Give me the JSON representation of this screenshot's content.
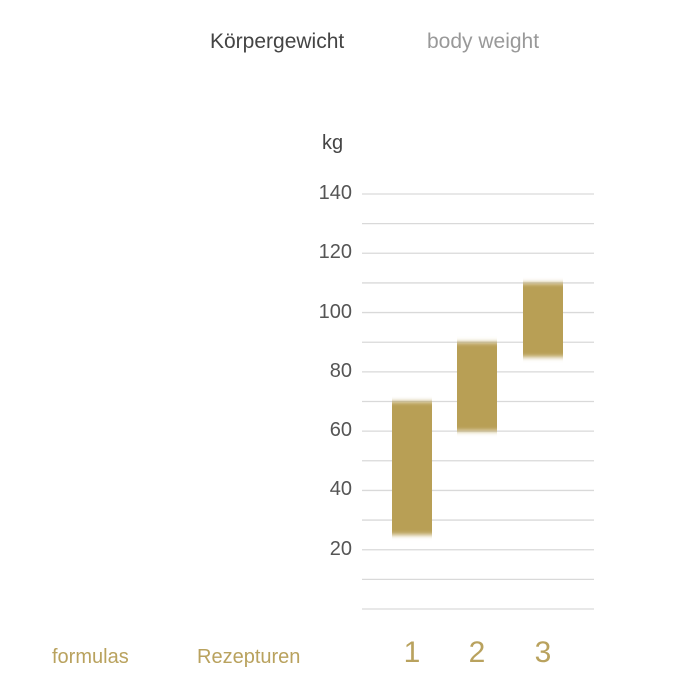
{
  "header": {
    "title_de": "Körpergewicht",
    "title_en": "body weight"
  },
  "legend": {
    "formulas": "formulas",
    "rezepturen": "Rezepturen"
  },
  "colors": {
    "bar": "#b89f55",
    "accent_text": "#b9a25e",
    "grid": "#d9d9d9"
  },
  "chart_data": {
    "type": "bar",
    "subtype": "floating-range",
    "ylabel": "kg",
    "ylim": [
      0,
      140
    ],
    "yticks": [
      20,
      40,
      60,
      80,
      100,
      120,
      140
    ],
    "gridline_step": 10,
    "grid": true,
    "categories": [
      "1",
      "2",
      "3"
    ],
    "ranges": [
      [
        25,
        70
      ],
      [
        60,
        90
      ],
      [
        85,
        110
      ]
    ]
  }
}
